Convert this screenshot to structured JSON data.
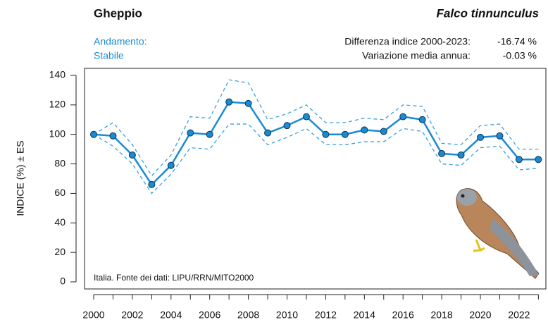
{
  "header": {
    "title": "Gheppio",
    "species": "Falco tinnunculus",
    "trend_label": "Andamento:",
    "trend": "Stabile",
    "diff_label": "Differenza indice 2000-2023:",
    "diff_value": "-16.74 %",
    "mean_label": "Variazione media annua:",
    "mean_value": "-0.03 %"
  },
  "chart_data": {
    "type": "line",
    "ylabel": "INDICE (%) ± ES",
    "annotation": "Italia. Fonte dei dati: LIPU/RRN/MITO2000",
    "categories": [
      "2000",
      null,
      "2002",
      null,
      "2004",
      null,
      "2006",
      null,
      "2008",
      null,
      "2010",
      null,
      "2012",
      null,
      "2014",
      null,
      "2016",
      null,
      "2018",
      null,
      "2020",
      null,
      "2022",
      null
    ],
    "series": [
      {
        "color": "#1a8ad4",
        "dashed": false,
        "markers": true,
        "values": [
          100,
          99,
          86,
          66,
          79,
          101,
          100,
          122,
          121,
          101,
          106,
          112,
          100,
          100,
          103,
          102,
          112,
          110,
          87,
          86,
          98,
          99,
          83,
          83
        ]
      },
      {
        "color": "#3aa0dc",
        "dashed": true,
        "markers": false,
        "values": [
          100,
          108,
          93,
          72,
          86,
          112,
          111,
          137,
          135,
          110,
          114,
          120,
          108,
          108,
          111,
          110,
          120,
          119,
          94,
          93,
          106,
          107,
          90,
          90
        ]
      },
      {
        "color": "#3aa0dc",
        "dashed": true,
        "markers": false,
        "values": [
          100,
          92,
          80,
          60,
          73,
          91,
          90,
          107,
          107,
          93,
          98,
          104,
          93,
          93,
          95,
          95,
          104,
          102,
          80,
          79,
          91,
          92,
          76,
          77
        ]
      }
    ],
    "ylim": [
      0,
      140
    ],
    "yticks": [
      0,
      20,
      40,
      60,
      80,
      100,
      120,
      140
    ]
  }
}
